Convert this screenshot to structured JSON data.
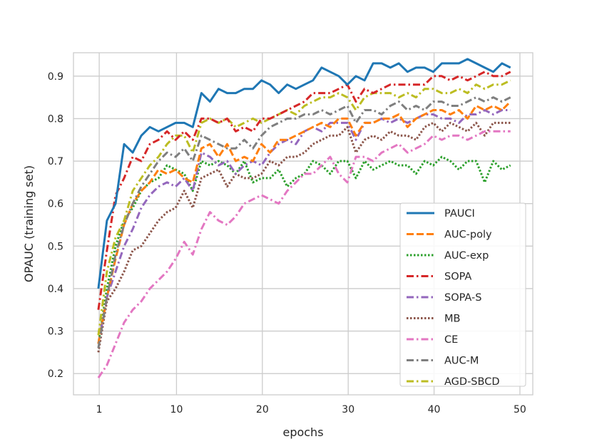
{
  "chart_data": {
    "type": "line",
    "title": "",
    "xlabel": "epochs",
    "ylabel": "OPAUC (training set)",
    "xlim": [
      -2,
      51.5
    ],
    "ylim": [
      0.15,
      0.955
    ],
    "xticks": [
      1,
      10,
      20,
      30,
      40,
      50
    ],
    "yticks": [
      0.2,
      0.3,
      0.4,
      0.5,
      0.6,
      0.7,
      0.8,
      0.9
    ],
    "grid": true,
    "legend_position": "lower-right",
    "x": [
      0.9,
      1.9,
      2.9,
      3.9,
      4.9,
      5.9,
      6.9,
      7.9,
      8.9,
      9.9,
      10.9,
      11.9,
      12.9,
      13.9,
      14.9,
      15.9,
      16.9,
      17.9,
      18.9,
      19.9,
      20.9,
      21.9,
      22.9,
      23.9,
      24.9,
      25.9,
      26.9,
      27.9,
      28.9,
      29.9,
      30.9,
      31.9,
      32.9,
      33.9,
      34.9,
      35.9,
      36.9,
      37.9,
      38.9,
      39.9,
      40.9,
      41.9,
      42.9,
      43.9,
      44.9,
      45.9,
      46.9,
      47.9,
      48.9
    ],
    "series": [
      {
        "name": "PAUCI",
        "color": "#1f77b4",
        "dash": "solid",
        "values": [
          0.4,
          0.56,
          0.6,
          0.74,
          0.72,
          0.76,
          0.78,
          0.77,
          0.78,
          0.79,
          0.79,
          0.78,
          0.86,
          0.84,
          0.87,
          0.86,
          0.86,
          0.87,
          0.87,
          0.89,
          0.88,
          0.86,
          0.88,
          0.87,
          0.88,
          0.89,
          0.92,
          0.91,
          0.9,
          0.88,
          0.9,
          0.89,
          0.93,
          0.93,
          0.92,
          0.93,
          0.91,
          0.92,
          0.92,
          0.91,
          0.93,
          0.93,
          0.93,
          0.94,
          0.93,
          0.92,
          0.91,
          0.93,
          0.92
        ]
      },
      {
        "name": "AUC-poly",
        "color": "#ff7f0e",
        "dash": "dashed",
        "values": [
          0.27,
          0.38,
          0.47,
          0.55,
          0.6,
          0.63,
          0.65,
          0.68,
          0.67,
          0.68,
          0.66,
          0.65,
          0.73,
          0.74,
          0.71,
          0.74,
          0.7,
          0.71,
          0.7,
          0.74,
          0.72,
          0.75,
          0.75,
          0.76,
          0.77,
          0.78,
          0.79,
          0.78,
          0.8,
          0.8,
          0.76,
          0.79,
          0.79,
          0.8,
          0.8,
          0.81,
          0.78,
          0.8,
          0.81,
          0.82,
          0.82,
          0.81,
          0.82,
          0.8,
          0.83,
          0.82,
          0.83,
          0.82,
          0.84
        ]
      },
      {
        "name": "AUC-exp",
        "color": "#2ca02c",
        "dash": "dotted",
        "values": [
          0.27,
          0.4,
          0.5,
          0.56,
          0.59,
          0.63,
          0.65,
          0.66,
          0.69,
          0.68,
          0.67,
          0.63,
          0.7,
          0.69,
          0.7,
          0.69,
          0.67,
          0.7,
          0.65,
          0.66,
          0.66,
          0.68,
          0.64,
          0.66,
          0.67,
          0.7,
          0.69,
          0.67,
          0.7,
          0.7,
          0.66,
          0.7,
          0.68,
          0.69,
          0.7,
          0.69,
          0.69,
          0.67,
          0.7,
          0.69,
          0.71,
          0.7,
          0.68,
          0.7,
          0.7,
          0.65,
          0.7,
          0.68,
          0.69
        ]
      },
      {
        "name": "SOPA",
        "color": "#d62728",
        "dash": "dashdot",
        "values": [
          0.35,
          0.49,
          0.62,
          0.66,
          0.71,
          0.7,
          0.74,
          0.75,
          0.77,
          0.75,
          0.77,
          0.75,
          0.8,
          0.8,
          0.79,
          0.8,
          0.77,
          0.78,
          0.77,
          0.8,
          0.8,
          0.81,
          0.82,
          0.83,
          0.84,
          0.86,
          0.86,
          0.86,
          0.87,
          0.88,
          0.84,
          0.87,
          0.86,
          0.87,
          0.88,
          0.88,
          0.88,
          0.88,
          0.88,
          0.9,
          0.9,
          0.89,
          0.9,
          0.89,
          0.9,
          0.91,
          0.9,
          0.9,
          0.91
        ]
      },
      {
        "name": "SOPA-S",
        "color": "#9467bd",
        "dash": "dashdot",
        "values": [
          0.27,
          0.38,
          0.44,
          0.5,
          0.54,
          0.59,
          0.62,
          0.64,
          0.65,
          0.64,
          0.66,
          0.63,
          0.72,
          0.71,
          0.69,
          0.7,
          0.67,
          0.69,
          0.7,
          0.69,
          0.72,
          0.74,
          0.75,
          0.74,
          0.77,
          0.78,
          0.77,
          0.79,
          0.79,
          0.79,
          0.75,
          0.79,
          0.79,
          0.8,
          0.79,
          0.8,
          0.79,
          0.8,
          0.81,
          0.81,
          0.8,
          0.8,
          0.79,
          0.81,
          0.81,
          0.82,
          0.81,
          0.82,
          0.82
        ]
      },
      {
        "name": "MB",
        "color": "#8c564b",
        "dash": "dotted",
        "values": [
          0.25,
          0.37,
          0.4,
          0.44,
          0.49,
          0.5,
          0.53,
          0.56,
          0.58,
          0.59,
          0.63,
          0.59,
          0.66,
          0.67,
          0.68,
          0.64,
          0.67,
          0.66,
          0.66,
          0.67,
          0.7,
          0.69,
          0.71,
          0.71,
          0.72,
          0.74,
          0.75,
          0.76,
          0.76,
          0.78,
          0.72,
          0.75,
          0.76,
          0.75,
          0.77,
          0.76,
          0.76,
          0.75,
          0.78,
          0.79,
          0.77,
          0.79,
          0.78,
          0.77,
          0.79,
          0.76,
          0.79,
          0.79,
          0.79
        ]
      },
      {
        "name": "CE",
        "color": "#e377c2",
        "dash": "dashdot",
        "values": [
          0.19,
          0.22,
          0.27,
          0.32,
          0.35,
          0.37,
          0.4,
          0.42,
          0.44,
          0.47,
          0.51,
          0.48,
          0.54,
          0.58,
          0.56,
          0.55,
          0.57,
          0.6,
          0.61,
          0.62,
          0.61,
          0.6,
          0.63,
          0.65,
          0.67,
          0.67,
          0.69,
          0.71,
          0.67,
          0.65,
          0.71,
          0.71,
          0.7,
          0.72,
          0.73,
          0.74,
          0.72,
          0.73,
          0.74,
          0.76,
          0.75,
          0.76,
          0.76,
          0.75,
          0.76,
          0.77,
          0.77,
          0.77,
          0.77
        ]
      },
      {
        "name": "AUC-M",
        "color": "#7f7f7f",
        "dash": "dashdot",
        "values": [
          0.26,
          0.38,
          0.48,
          0.55,
          0.6,
          0.64,
          0.67,
          0.7,
          0.72,
          0.71,
          0.73,
          0.7,
          0.76,
          0.75,
          0.74,
          0.73,
          0.73,
          0.75,
          0.73,
          0.76,
          0.78,
          0.79,
          0.8,
          0.8,
          0.81,
          0.81,
          0.82,
          0.81,
          0.82,
          0.83,
          0.79,
          0.82,
          0.82,
          0.81,
          0.83,
          0.84,
          0.82,
          0.83,
          0.82,
          0.84,
          0.84,
          0.83,
          0.83,
          0.84,
          0.85,
          0.84,
          0.85,
          0.84,
          0.85
        ]
      },
      {
        "name": "AGD-SBCD",
        "color": "#bcbd22",
        "dash": "dashdot",
        "values": [
          0.29,
          0.44,
          0.52,
          0.56,
          0.63,
          0.66,
          0.69,
          0.71,
          0.74,
          0.76,
          0.76,
          0.72,
          0.79,
          0.8,
          0.79,
          0.8,
          0.78,
          0.79,
          0.8,
          0.79,
          0.8,
          0.81,
          0.82,
          0.81,
          0.83,
          0.84,
          0.85,
          0.85,
          0.86,
          0.85,
          0.82,
          0.85,
          0.86,
          0.86,
          0.86,
          0.85,
          0.86,
          0.85,
          0.87,
          0.87,
          0.86,
          0.86,
          0.87,
          0.86,
          0.88,
          0.87,
          0.88,
          0.88,
          0.89
        ]
      }
    ]
  }
}
